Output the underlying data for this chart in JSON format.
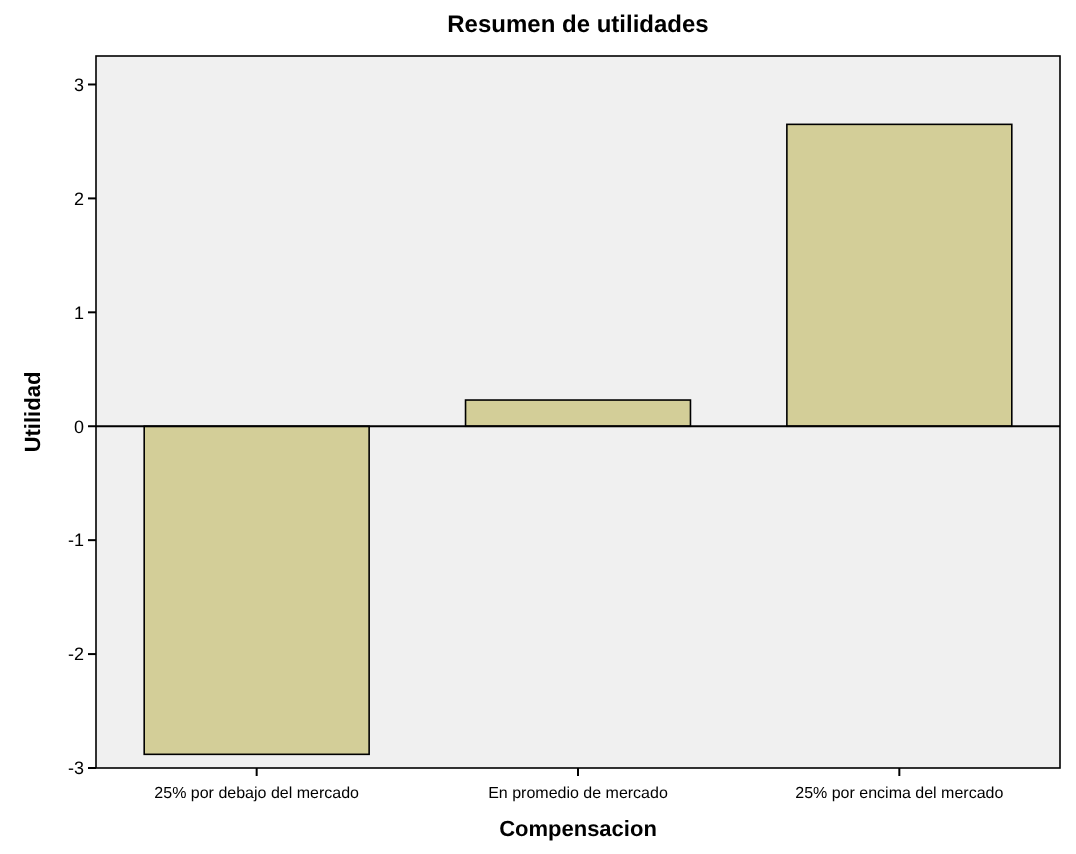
{
  "chart_data": {
    "type": "bar",
    "title": "Resumen de utilidades",
    "xlabel": "Compensacion",
    "ylabel": "Utilidad",
    "categories": [
      "25% por debajo del mercado",
      "En promedio de mercado",
      "25% por encima del mercado"
    ],
    "values": [
      -2.88,
      0.23,
      2.65
    ],
    "color": "#d3ce98",
    "ylim": [
      -3,
      3.25
    ],
    "yticks": [
      -3,
      -2,
      -1,
      0,
      1,
      2,
      3
    ],
    "grid": false,
    "ref_lines": [
      {
        "axis": "y",
        "value": 0
      }
    ]
  }
}
